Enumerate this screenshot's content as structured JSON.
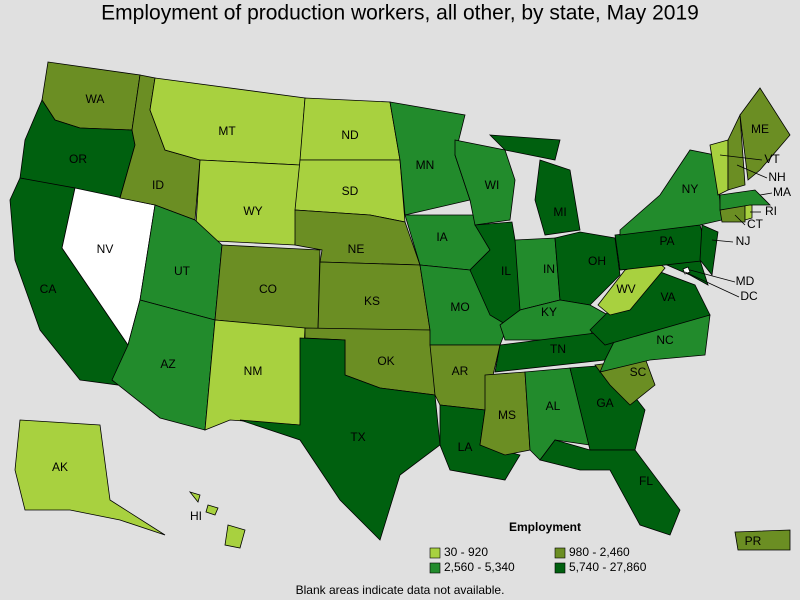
{
  "title": "Employment of production workers, all other, by state, May 2019",
  "legend": {
    "title": "Employment",
    "classes": [
      {
        "label": "30 - 920",
        "color": "#a8d13f"
      },
      {
        "label": "980 - 2,460",
        "color": "#6b8e23"
      },
      {
        "label": "2,560 - 5,340",
        "color": "#228b2c"
      },
      {
        "label": "5,740 - 27,860",
        "color": "#00600f"
      }
    ]
  },
  "states": [
    {
      "label": "WA",
      "class": 1
    },
    {
      "label": "OR",
      "class": 3
    },
    {
      "label": "CA",
      "class": 3
    },
    {
      "label": "NV",
      "class": null
    },
    {
      "label": "ID",
      "class": 1
    },
    {
      "label": "MT",
      "class": 0
    },
    {
      "label": "WY",
      "class": 0
    },
    {
      "label": "UT",
      "class": 2
    },
    {
      "label": "AZ",
      "class": 2
    },
    {
      "label": "CO",
      "class": 1
    },
    {
      "label": "NM",
      "class": 0
    },
    {
      "label": "ND",
      "class": 0
    },
    {
      "label": "SD",
      "class": 0
    },
    {
      "label": "NE",
      "class": 1
    },
    {
      "label": "KS",
      "class": 1
    },
    {
      "label": "OK",
      "class": 1
    },
    {
      "label": "TX",
      "class": 3
    },
    {
      "label": "MN",
      "class": 2
    },
    {
      "label": "IA",
      "class": 2
    },
    {
      "label": "MO",
      "class": 2
    },
    {
      "label": "AR",
      "class": 1
    },
    {
      "label": "LA",
      "class": 3
    },
    {
      "label": "WI",
      "class": 2
    },
    {
      "label": "IL",
      "class": 3
    },
    {
      "label": "MI",
      "class": 3
    },
    {
      "label": "IN",
      "class": 2
    },
    {
      "label": "OH",
      "class": 3
    },
    {
      "label": "KY",
      "class": 2
    },
    {
      "label": "TN",
      "class": 3
    },
    {
      "label": "MS",
      "class": 1
    },
    {
      "label": "AL",
      "class": 2
    },
    {
      "label": "GA",
      "class": 3
    },
    {
      "label": "FL",
      "class": 3
    },
    {
      "label": "SC",
      "class": 1
    },
    {
      "label": "NC",
      "class": 2
    },
    {
      "label": "VA",
      "class": 3
    },
    {
      "label": "WV",
      "class": 0
    },
    {
      "label": "MD",
      "class": 3
    },
    {
      "label": "DC",
      "class": null
    },
    {
      "label": "PA",
      "class": 3
    },
    {
      "label": "NY",
      "class": 2
    },
    {
      "label": "NJ",
      "class": 3
    },
    {
      "label": "CT",
      "class": 1
    },
    {
      "label": "RI",
      "class": 0
    },
    {
      "label": "MA",
      "class": 2
    },
    {
      "label": "VT",
      "class": 0
    },
    {
      "label": "NH",
      "class": 1
    },
    {
      "label": "ME",
      "class": 1
    },
    {
      "label": "AK",
      "class": 0
    },
    {
      "label": "HI",
      "class": 0
    },
    {
      "label": "PR",
      "class": 1
    }
  ],
  "note": "Blank areas indicate data not available."
}
